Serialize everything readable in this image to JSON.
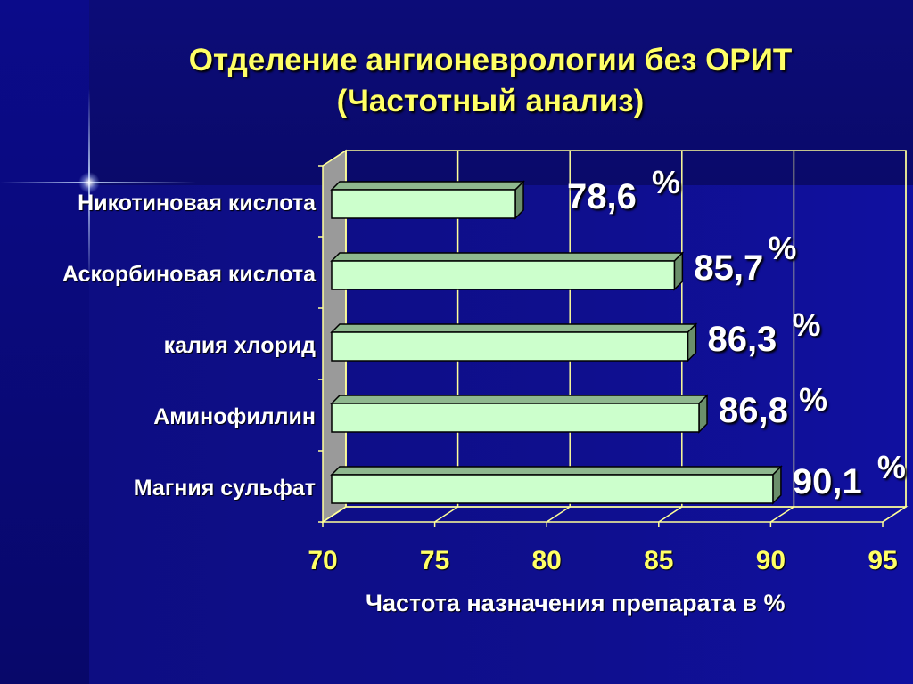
{
  "title_line1": "Отделение ангионеврологии без ОРИТ",
  "title_line2": "(Частотный анализ)",
  "chart_data": {
    "type": "bar",
    "orientation": "horizontal",
    "categories": [
      "Никотиновая кислота",
      "Аскорбиновая кислота",
      "калия хлорид",
      "Аминофиллин",
      "Магния сульфат"
    ],
    "values": [
      78.6,
      85.7,
      86.3,
      86.8,
      90.1
    ],
    "value_labels": [
      "78,6",
      "85,7",
      "86,3",
      "86,8",
      "90,1"
    ],
    "value_unit": "%",
    "xlabel": "Частота назначения препарата в %",
    "xlim": [
      70,
      95
    ],
    "xticks": [
      "70",
      "75",
      "80",
      "85",
      "90",
      "95"
    ],
    "grid": true,
    "colors": {
      "bar": "#ccffcc",
      "bar_top": "#8fb88f",
      "bar_side": "#6b8f6b",
      "grid": "#ffff99",
      "wall": "#9a9a9a",
      "title": "#ffff66",
      "tick": "#ffff66",
      "text": "#ffffff"
    }
  }
}
